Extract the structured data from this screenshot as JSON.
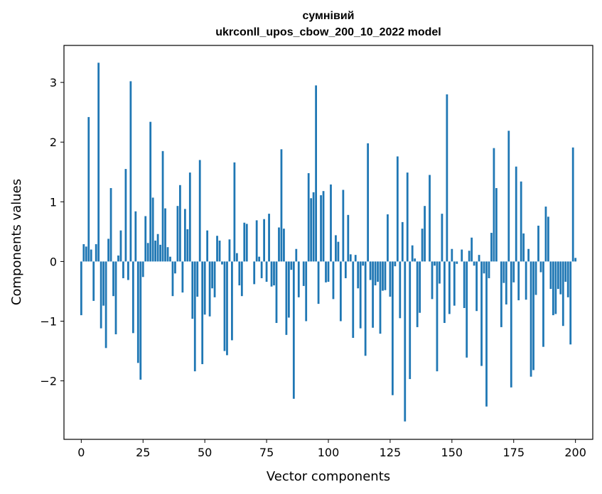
{
  "chart_data": {
    "type": "bar",
    "title": "сумнівий",
    "subtitle": "ukrconll_upos_cbow_200_10_2022 model",
    "xlabel": "Vector components",
    "ylabel": "Components values",
    "xlim": [
      -7,
      207
    ],
    "ylim": [
      -2.98,
      3.62
    ],
    "xticks": [
      0,
      25,
      50,
      75,
      100,
      125,
      150,
      175,
      200
    ],
    "yticks": [
      -2,
      -1,
      0,
      1,
      2,
      3
    ],
    "bar_color": "#1f77b4",
    "grid": false,
    "values": [
      -0.9,
      0.29,
      0.25,
      2.42,
      0.2,
      -0.66,
      0.29,
      3.33,
      -1.12,
      -0.74,
      -1.45,
      0.38,
      1.23,
      -0.58,
      -1.22,
      0.1,
      0.52,
      -0.28,
      1.55,
      -0.31,
      3.02,
      -1.2,
      0.84,
      -1.7,
      -1.98,
      -0.26,
      0.76,
      0.31,
      2.34,
      1.07,
      0.35,
      0.46,
      0.28,
      1.85,
      0.89,
      0.24,
      0.08,
      -0.58,
      -0.2,
      0.93,
      1.28,
      -0.52,
      0.88,
      0.54,
      1.49,
      -0.96,
      -1.84,
      -0.59,
      1.7,
      -1.72,
      -0.89,
      0.52,
      -0.92,
      -0.45,
      -0.6,
      0.43,
      0.35,
      -0.05,
      -1.5,
      -1.57,
      0.37,
      -1.32,
      1.66,
      0.14,
      -0.4,
      -0.58,
      0.65,
      0.63,
      0.0,
      0.0,
      -0.38,
      0.69,
      0.08,
      -0.28,
      0.71,
      -0.34,
      0.8,
      -0.42,
      -0.4,
      -1.03,
      0.57,
      1.88,
      0.55,
      -1.23,
      -0.94,
      -0.14,
      -2.3,
      0.21,
      -0.6,
      0.0,
      -0.41,
      -1.0,
      1.48,
      1.06,
      1.16,
      2.95,
      -0.71,
      1.11,
      1.18,
      -0.35,
      -0.34,
      1.29,
      -0.63,
      0.44,
      0.33,
      -1.0,
      1.2,
      -0.28,
      0.78,
      0.12,
      -1.28,
      0.11,
      -0.45,
      -1.12,
      -0.07,
      -1.58,
      1.98,
      -0.31,
      -1.11,
      -0.4,
      -0.34,
      -1.21,
      -0.49,
      -0.48,
      0.79,
      -0.59,
      -2.24,
      -0.08,
      1.76,
      -0.95,
      0.66,
      -2.68,
      1.49,
      -1.97,
      0.27,
      0.05,
      -1.1,
      -0.86,
      0.55,
      0.93,
      0.0,
      1.45,
      -0.63,
      -0.07,
      -1.84,
      -0.37,
      0.8,
      -1.03,
      2.8,
      -0.88,
      0.21,
      -0.74,
      -0.04,
      0.0,
      0.2,
      -0.78,
      -1.61,
      0.18,
      0.4,
      -0.07,
      -0.83,
      0.11,
      -1.75,
      -0.2,
      -2.43,
      -0.28,
      0.48,
      1.9,
      1.23,
      0.0,
      -1.1,
      -0.36,
      -0.72,
      2.19,
      -2.11,
      -0.35,
      1.59,
      -0.65,
      1.34,
      0.47,
      -0.64,
      0.21,
      -1.93,
      -1.82,
      -0.56,
      0.6,
      -0.18,
      -1.43,
      0.92,
      0.75,
      -0.46,
      -0.9,
      -0.88,
      -0.46,
      -0.55,
      -1.08,
      -0.34,
      -0.6,
      -1.39,
      1.91,
      0.06
    ]
  }
}
